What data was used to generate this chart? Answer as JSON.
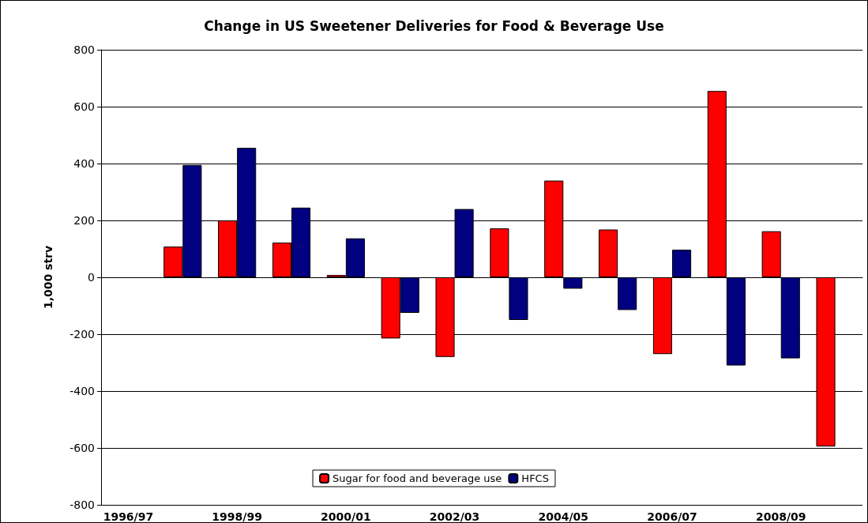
{
  "chart_data": {
    "type": "bar",
    "title": "Change in US Sweetener Deliveries for Food & Beverage Use",
    "ylabel": "1,000 strv",
    "categories": [
      "1996/97",
      null,
      "1998/99",
      null,
      "2000/01",
      null,
      "2002/03",
      null,
      "2004/05",
      null,
      "2006/07",
      null,
      "2008/09",
      null
    ],
    "series": [
      {
        "name": "Sugar for food and beverage use",
        "color": "#ff0000",
        "values": [
          null,
          108,
          200,
          122,
          8,
          -215,
          -280,
          172,
          340,
          168,
          -270,
          655,
          162,
          -595
        ]
      },
      {
        "name": "HFCS",
        "color": "#000080",
        "values": [
          null,
          395,
          455,
          245,
          137,
          -125,
          240,
          -150,
          -40,
          -115,
          97,
          -310,
          -285,
          null
        ]
      }
    ],
    "ylim": [
      -800,
      800
    ],
    "yticks": [
      -800,
      -600,
      -400,
      -200,
      0,
      200,
      400,
      600,
      800
    ],
    "grid": "y",
    "legend": "bottom"
  }
}
